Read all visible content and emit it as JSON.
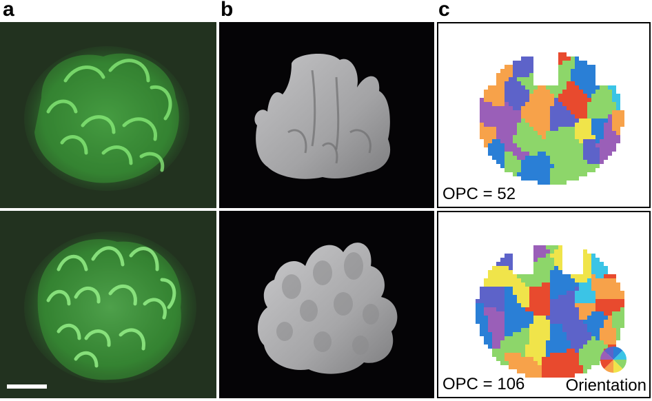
{
  "figure": {
    "panels": [
      {
        "letter": "a"
      },
      {
        "letter": "b"
      },
      {
        "letter": "c"
      }
    ],
    "opc_labels": [
      "OPC = 52",
      "OPC = 106"
    ],
    "legend": {
      "label": "Orientation",
      "colors": [
        "#2a7fd6",
        "#3bc4e6",
        "#8dd66a",
        "#f0e44a",
        "#f7a24a",
        "#e84a2e",
        "#9a5fb8",
        "#5d63c9"
      ]
    },
    "fluorescence_color": "#4fd852",
    "render_color": "#a9a9ab",
    "scale_bar_color": "#ffffff"
  }
}
